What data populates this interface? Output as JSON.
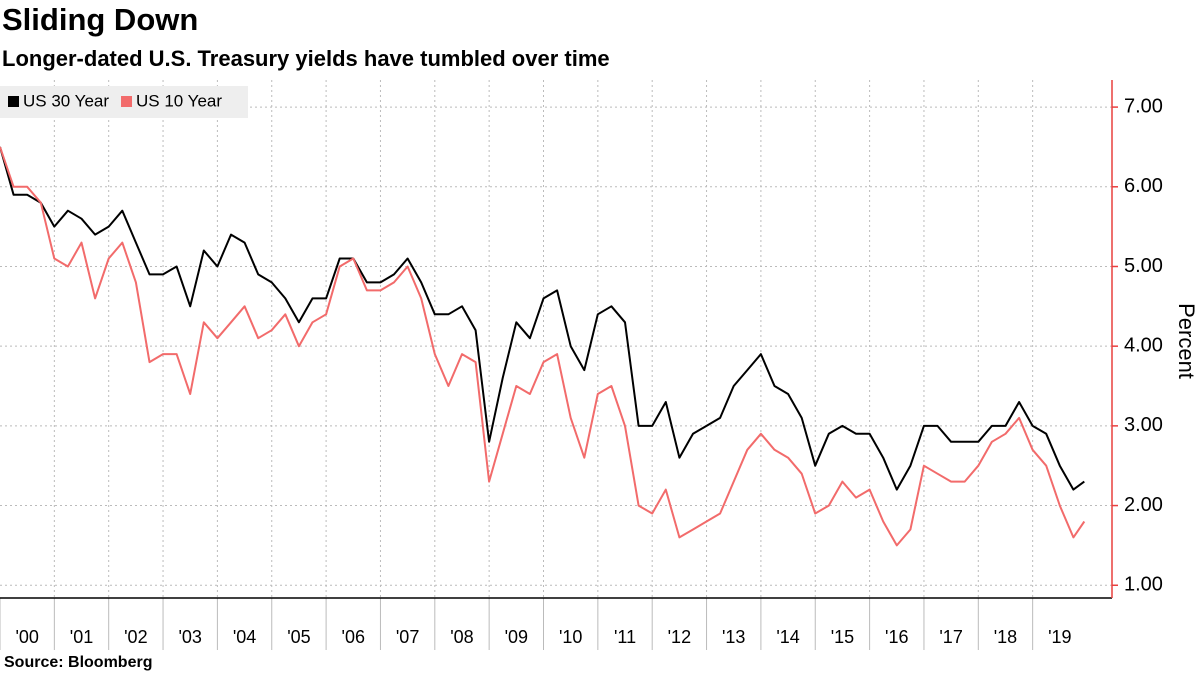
{
  "chart_data": {
    "type": "line",
    "title": "Sliding Down",
    "subtitle": "Longer-dated U.S. Treasury yields have tumbled over time",
    "source": "Source: Bloomberg",
    "y_label": "Percent",
    "legend": "top-left",
    "grid": true,
    "x": [
      2000.0,
      2000.25,
      2000.5,
      2000.75,
      2001.0,
      2001.25,
      2001.5,
      2001.75,
      2002.0,
      2002.25,
      2002.5,
      2002.75,
      2003.0,
      2003.25,
      2003.5,
      2003.75,
      2004.0,
      2004.25,
      2004.5,
      2004.75,
      2005.0,
      2005.25,
      2005.5,
      2005.75,
      2006.0,
      2006.25,
      2006.5,
      2006.75,
      2007.0,
      2007.25,
      2007.5,
      2007.75,
      2008.0,
      2008.25,
      2008.5,
      2008.75,
      2009.0,
      2009.25,
      2009.5,
      2009.75,
      2010.0,
      2010.25,
      2010.5,
      2010.75,
      2011.0,
      2011.25,
      2011.5,
      2011.75,
      2012.0,
      2012.25,
      2012.5,
      2012.75,
      2013.0,
      2013.25,
      2013.5,
      2013.75,
      2014.0,
      2014.25,
      2014.5,
      2014.75,
      2015.0,
      2015.25,
      2015.5,
      2015.75,
      2016.0,
      2016.25,
      2016.5,
      2016.75,
      2017.0,
      2017.25,
      2017.5,
      2017.75,
      2018.0,
      2018.25,
      2018.5,
      2018.75,
      2019.0,
      2019.25,
      2019.5,
      2019.75,
      2019.95
    ],
    "series": [
      {
        "name": "US 30 Year",
        "color": "#000000",
        "values": [
          6.5,
          5.9,
          5.9,
          5.8,
          5.5,
          5.7,
          5.6,
          5.4,
          5.5,
          5.7,
          5.3,
          4.9,
          4.9,
          5.0,
          4.5,
          5.2,
          5.0,
          5.4,
          5.3,
          4.9,
          4.8,
          4.6,
          4.3,
          4.6,
          4.6,
          5.1,
          5.1,
          4.8,
          4.8,
          4.9,
          5.1,
          4.8,
          4.4,
          4.4,
          4.5,
          4.2,
          2.8,
          3.6,
          4.3,
          4.1,
          4.6,
          4.7,
          4.0,
          3.7,
          4.4,
          4.5,
          4.3,
          3.0,
          3.0,
          3.3,
          2.6,
          2.9,
          3.0,
          3.1,
          3.5,
          3.7,
          3.9,
          3.5,
          3.4,
          3.1,
          2.5,
          2.9,
          3.0,
          2.9,
          2.9,
          2.6,
          2.2,
          2.5,
          3.0,
          3.0,
          2.8,
          2.8,
          2.8,
          3.0,
          3.0,
          3.3,
          3.0,
          2.9,
          2.5,
          2.2,
          2.3
        ]
      },
      {
        "name": "US 10 Year",
        "color": "#f26b6b",
        "values": [
          6.5,
          6.0,
          6.0,
          5.8,
          5.1,
          5.0,
          5.3,
          4.6,
          5.1,
          5.3,
          4.8,
          3.8,
          3.9,
          3.9,
          3.4,
          4.3,
          4.1,
          4.3,
          4.5,
          4.1,
          4.2,
          4.4,
          4.0,
          4.3,
          4.4,
          5.0,
          5.1,
          4.7,
          4.7,
          4.8,
          5.0,
          4.6,
          3.9,
          3.5,
          3.9,
          3.8,
          2.3,
          2.9,
          3.5,
          3.4,
          3.8,
          3.9,
          3.1,
          2.6,
          3.4,
          3.5,
          3.0,
          2.0,
          1.9,
          2.2,
          1.6,
          1.7,
          1.8,
          1.9,
          2.3,
          2.7,
          2.9,
          2.7,
          2.6,
          2.4,
          1.9,
          2.0,
          2.3,
          2.1,
          2.2,
          1.8,
          1.5,
          1.7,
          2.5,
          2.4,
          2.3,
          2.3,
          2.5,
          2.8,
          2.9,
          3.1,
          2.7,
          2.5,
          2.0,
          1.6,
          1.8
        ]
      }
    ],
    "xlim": [
      2000.0,
      2020.46
    ],
    "xticks": [
      {
        "value": 2000,
        "label": "'00"
      },
      {
        "value": 2001,
        "label": "'01"
      },
      {
        "value": 2002,
        "label": "'02"
      },
      {
        "value": 2003,
        "label": "'03"
      },
      {
        "value": 2004,
        "label": "'04"
      },
      {
        "value": 2005,
        "label": "'05"
      },
      {
        "value": 2006,
        "label": "'06"
      },
      {
        "value": 2007,
        "label": "'07"
      },
      {
        "value": 2008,
        "label": "'08"
      },
      {
        "value": 2009,
        "label": "'09"
      },
      {
        "value": 2010,
        "label": "'10"
      },
      {
        "value": 2011,
        "label": "'11"
      },
      {
        "value": 2012,
        "label": "'12"
      },
      {
        "value": 2013,
        "label": "'13"
      },
      {
        "value": 2014,
        "label": "'14"
      },
      {
        "value": 2015,
        "label": "'15"
      },
      {
        "value": 2016,
        "label": "'16"
      },
      {
        "value": 2017,
        "label": "'17"
      },
      {
        "value": 2018,
        "label": "'18"
      },
      {
        "value": 2019,
        "label": "'19"
      }
    ],
    "ylim": [
      0.84,
      7.34
    ],
    "yticks": [
      {
        "value": 1,
        "label": "1.00"
      },
      {
        "value": 2,
        "label": "2.00"
      },
      {
        "value": 3,
        "label": "3.00"
      },
      {
        "value": 4,
        "label": "4.00"
      },
      {
        "value": 5,
        "label": "5.00"
      },
      {
        "value": 6,
        "label": "6.00"
      },
      {
        "value": 7,
        "label": "7.00"
      }
    ],
    "axis_color": "#e8403f"
  }
}
